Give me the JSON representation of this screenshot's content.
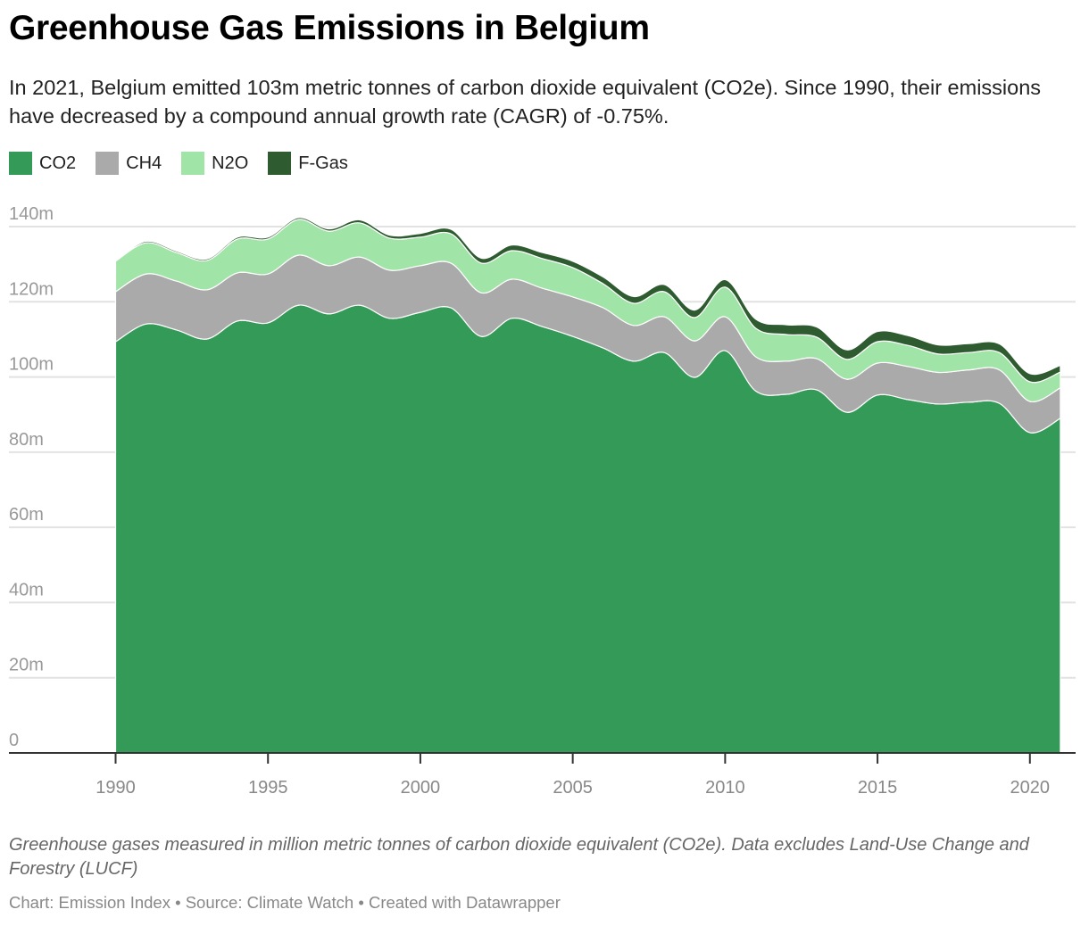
{
  "chart_data": {
    "type": "stacked-area",
    "title": "Greenhouse Gas Emissions in Belgium",
    "subtitle": "In 2021, Belgium emitted 103m metric tonnes of carbon dioxide equivalent (CO2e). Since 1990, their emissions have decreased by a compound annual growth rate (CAGR) of -0.75%.",
    "notes": "Greenhouse gases measured in million metric tonnes of carbon dioxide equivalent (CO2e). Data excludes Land-Use Change and Forestry (LUCF)",
    "credits": "Chart: Emission Index • Source: Climate Watch • Created with Datawrapper",
    "x": [
      1990,
      1991,
      1992,
      1993,
      1994,
      1995,
      1996,
      1997,
      1998,
      1999,
      2000,
      2001,
      2002,
      2003,
      2004,
      2005,
      2006,
      2007,
      2008,
      2009,
      2010,
      2011,
      2012,
      2013,
      2014,
      2015,
      2016,
      2017,
      2018,
      2019,
      2020,
      2021
    ],
    "xlim": [
      1986.5,
      2021.5
    ],
    "xticks": [
      1990,
      1995,
      2000,
      2005,
      2010,
      2015,
      2020
    ],
    "ylim": [
      0,
      140
    ],
    "yticks": [
      0,
      {
        "value": 20,
        "label": "20m"
      },
      {
        "value": 40,
        "label": "40m"
      },
      {
        "value": 60,
        "label": "60m"
      },
      {
        "value": 80,
        "label": "80m"
      },
      {
        "value": 100,
        "label": "100m"
      },
      {
        "value": 120,
        "label": "120m"
      },
      {
        "value": 140,
        "label": "140m"
      }
    ],
    "grid": true,
    "legend": "top-left",
    "series": [
      {
        "name": "CO2",
        "color": "#349a57",
        "values": [
          109.4,
          114.1,
          112.5,
          110.1,
          114.9,
          114.4,
          119.1,
          116.8,
          119.1,
          115.6,
          117.2,
          118.4,
          110.8,
          115.6,
          113.4,
          110.8,
          107.7,
          104.2,
          106.5,
          99.9,
          107.0,
          96.3,
          95.4,
          96.6,
          90.6,
          95.2,
          94.0,
          92.8,
          93.3,
          93.0,
          85.2,
          89.0
        ]
      },
      {
        "name": "CH4",
        "color": "#aaaaaa",
        "values": [
          13.3,
          13.3,
          13.0,
          13.1,
          12.8,
          13.0,
          13.3,
          12.8,
          12.8,
          12.8,
          12.4,
          11.9,
          11.6,
          10.4,
          10.2,
          10.5,
          10.7,
          9.5,
          9.5,
          9.7,
          9.0,
          9.1,
          8.8,
          8.3,
          8.8,
          8.5,
          8.8,
          8.4,
          8.6,
          8.9,
          8.3,
          8.1
        ]
      },
      {
        "name": "N2O",
        "color": "#a1e4a7",
        "values": [
          8.1,
          8.3,
          7.6,
          7.8,
          9.0,
          9.3,
          9.5,
          9.2,
          9.1,
          8.5,
          7.6,
          7.8,
          7.9,
          7.6,
          7.9,
          7.8,
          6.4,
          5.9,
          6.7,
          6.2,
          7.9,
          7.6,
          7.1,
          5.7,
          5.3,
          5.7,
          5.6,
          4.9,
          4.6,
          4.6,
          5.2,
          4.2
        ]
      },
      {
        "name": "F-Gas",
        "color": "#2f5b31",
        "values": [
          0.3,
          0.4,
          0.4,
          0.4,
          0.5,
          0.5,
          0.5,
          0.6,
          0.8,
          0.8,
          1.0,
          1.2,
          1.3,
          1.5,
          1.6,
          1.7,
          1.8,
          1.8,
          1.9,
          2.0,
          2.0,
          2.4,
          2.6,
          2.7,
          2.5,
          2.7,
          2.6,
          2.4,
          2.4,
          2.3,
          2.2,
          1.8
        ]
      }
    ]
  }
}
